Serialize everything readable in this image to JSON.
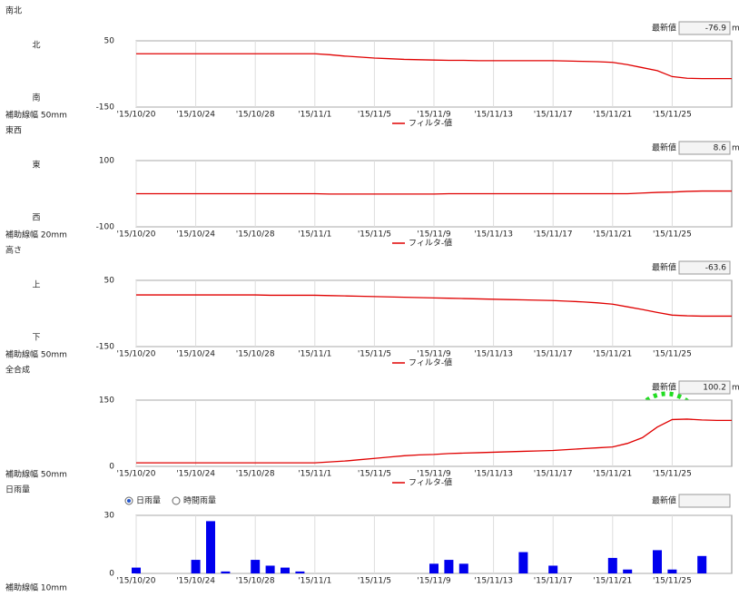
{
  "chart_data": [
    {
      "type": "line",
      "title": "南北",
      "upper_label": "北",
      "lower_label": "南",
      "note": "補助線幅 50mm",
      "latest_label": "最新値",
      "latest_value": "-76.9",
      "unit": "mm",
      "categories": [
        "'15/10/20",
        null,
        null,
        null,
        "'15/10/24",
        null,
        null,
        null,
        "'15/10/28",
        null,
        null,
        null,
        "'15/11/1",
        null,
        null,
        null,
        "'15/11/5",
        null,
        null,
        null,
        "'15/11/9",
        null,
        null,
        null,
        "'15/11/13",
        null,
        null,
        null,
        "'15/11/17",
        null,
        null,
        null,
        "'15/11/21",
        null,
        null,
        null,
        "'15/11/25",
        null,
        null,
        null,
        null
      ],
      "series": [
        {
          "name": "フィルタ-値",
          "color": "#e00000",
          "values": [
            11,
            11,
            11,
            11,
            11,
            11,
            11,
            11,
            11,
            11,
            11,
            11,
            11,
            8,
            4,
            1,
            -2,
            -4,
            -6,
            -7,
            -8,
            -9,
            -9,
            -10,
            -10,
            -10,
            -10,
            -10,
            -10,
            -11,
            -12,
            -13,
            -15,
            -22,
            -31,
            -40,
            -58,
            -63,
            -64,
            -64,
            -64
          ]
        }
      ],
      "ylim": [
        -150,
        50
      ],
      "yticks": [
        -150,
        50
      ]
    },
    {
      "type": "line",
      "title": "東西",
      "upper_label": "東",
      "lower_label": "西",
      "note": "補助線幅 20mm",
      "latest_label": "最新値",
      "latest_value": "8.6",
      "unit": "mm",
      "categories": [
        "'15/10/20",
        null,
        null,
        null,
        "'15/10/24",
        null,
        null,
        null,
        "'15/10/28",
        null,
        null,
        null,
        "'15/11/1",
        null,
        null,
        null,
        "'15/11/5",
        null,
        null,
        null,
        "'15/11/9",
        null,
        null,
        null,
        "'15/11/13",
        null,
        null,
        null,
        "'15/11/17",
        null,
        null,
        null,
        "'15/11/21",
        null,
        null,
        null,
        "'15/11/25",
        null,
        null,
        null,
        null
      ],
      "series": [
        {
          "name": "フィルタ-値",
          "color": "#e00000",
          "values": [
            0,
            0,
            0,
            0,
            0,
            0,
            0,
            0,
            0,
            0,
            0,
            0,
            0,
            -1,
            -1,
            -1,
            -1,
            -1,
            -1,
            -1,
            -1,
            0,
            0,
            0,
            0,
            0,
            0,
            0,
            0,
            0,
            0,
            0,
            0,
            0,
            2,
            4,
            5,
            7,
            8,
            8,
            8
          ]
        }
      ],
      "ylim": [
        -100,
        100
      ],
      "yticks": [
        -100,
        100
      ]
    },
    {
      "type": "line",
      "title": "高さ",
      "upper_label": "上",
      "lower_label": "下",
      "note": "補助線幅 50mm",
      "latest_label": "最新値",
      "latest_value": "-63.6",
      "categories": [
        "'15/10/20",
        null,
        null,
        null,
        "'15/10/24",
        null,
        null,
        null,
        "'15/10/28",
        null,
        null,
        null,
        "'15/11/1",
        null,
        null,
        null,
        "'15/11/5",
        null,
        null,
        null,
        "'15/11/9",
        null,
        null,
        null,
        "'15/11/13",
        null,
        null,
        null,
        "'15/11/17",
        null,
        null,
        null,
        "'15/11/21",
        null,
        null,
        null,
        "'15/11/25",
        null,
        null,
        null,
        null
      ],
      "series": [
        {
          "name": "フィルタ-値",
          "color": "#e00000",
          "values": [
            6,
            6,
            6,
            6,
            6,
            6,
            6,
            6,
            6,
            5,
            5,
            5,
            5,
            4,
            3,
            2,
            1,
            0,
            -1,
            -2,
            -3,
            -4,
            -5,
            -6,
            -7,
            -8,
            -9,
            -10,
            -11,
            -13,
            -15,
            -18,
            -22,
            -30,
            -38,
            -47,
            -55,
            -57,
            -58,
            -58,
            -58
          ]
        }
      ],
      "ylim": [
        -150,
        50
      ],
      "yticks": [
        -150,
        50
      ]
    },
    {
      "type": "line",
      "title": "全合成",
      "note": "補助線幅 50mm",
      "latest_label": "最新値",
      "latest_value": "100.2",
      "unit": "mm",
      "categories": [
        "'15/10/20",
        null,
        null,
        null,
        "'15/10/24",
        null,
        null,
        null,
        "'15/10/28",
        null,
        null,
        null,
        "'15/11/1",
        null,
        null,
        null,
        "'15/11/5",
        null,
        null,
        null,
        "'15/11/9",
        null,
        null,
        null,
        "'15/11/13",
        null,
        null,
        null,
        "'15/11/17",
        null,
        null,
        null,
        "'15/11/21",
        null,
        null,
        null,
        "'15/11/25",
        null,
        null,
        null,
        null
      ],
      "series": [
        {
          "name": "フィルタ-値",
          "color": "#e00000",
          "values": [
            8,
            8,
            8,
            8,
            8,
            8,
            8,
            8,
            8,
            8,
            8,
            8,
            8,
            10,
            12,
            15,
            18,
            21,
            24,
            26,
            27,
            29,
            30,
            31,
            32,
            33,
            34,
            35,
            36,
            38,
            40,
            42,
            44,
            52,
            65,
            89,
            106,
            107,
            105,
            104,
            104
          ]
        }
      ],
      "ylim": [
        0,
        150
      ],
      "yticks": [
        0,
        150
      ]
    },
    {
      "type": "bar",
      "title": "日雨量",
      "options": [
        "日雨量",
        "時間雨量"
      ],
      "note": "補助線幅 10mm",
      "latest_label": "最新値",
      "categories": [
        "'15/10/20",
        null,
        null,
        null,
        "'15/10/24",
        null,
        null,
        null,
        "'15/10/28",
        null,
        null,
        null,
        "'15/11/1",
        null,
        null,
        null,
        "'15/11/5",
        null,
        null,
        null,
        "'15/11/9",
        null,
        null,
        null,
        "'15/11/13",
        null,
        null,
        null,
        "'15/11/17",
        null,
        null,
        null,
        "'15/11/21",
        null,
        null,
        null,
        "'15/11/25",
        null,
        null,
        null,
        null
      ],
      "values": [
        3,
        0,
        0,
        0,
        7,
        27,
        1,
        0,
        7,
        4,
        3,
        1,
        0,
        0,
        0,
        0,
        0,
        0,
        0,
        0,
        5,
        7,
        5,
        0,
        0,
        0,
        11,
        0,
        4,
        0,
        0,
        0,
        8,
        2,
        0,
        12,
        2,
        0,
        9,
        0,
        0
      ],
      "color": "#0000ee",
      "ylim": [
        0,
        30
      ],
      "yticks": [
        0,
        30
      ]
    }
  ]
}
